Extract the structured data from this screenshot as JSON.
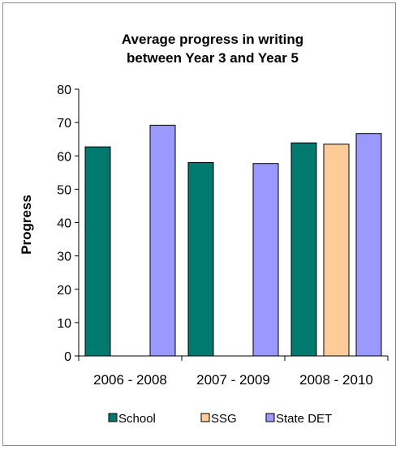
{
  "chart_data": {
    "type": "bar",
    "title": [
      "Average progress in writing",
      "between Year 3 and Year 5"
    ],
    "ylabel": "Progress",
    "xlabel": "",
    "ylim": [
      0,
      80
    ],
    "yticks": [
      0,
      10,
      20,
      30,
      40,
      50,
      60,
      70,
      80
    ],
    "grid": false,
    "legend_position": "bottom",
    "categories": [
      "2006 - 2008",
      "2007 - 2009",
      "2008 - 2010"
    ],
    "series": [
      {
        "name": "School",
        "color": "#007a6e",
        "values": [
          62.7,
          58.0,
          63.9
        ]
      },
      {
        "name": "SSG",
        "color": "#ffcc99",
        "values": [
          null,
          null,
          63.5
        ]
      },
      {
        "name": "State DET",
        "color": "#9999ff",
        "values": [
          69.2,
          57.7,
          66.7
        ]
      }
    ]
  }
}
